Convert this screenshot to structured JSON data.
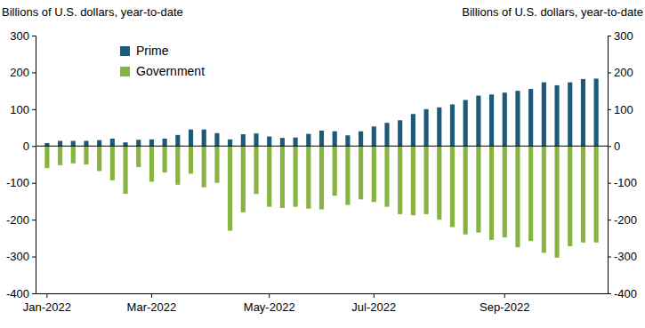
{
  "chart_data": {
    "type": "bar",
    "y_label": "Billions of U.S. dollars, year-to-date",
    "y2_label": "Billions of U.S. dollars, year-to-date",
    "categories": [
      "Jan-2022",
      null,
      null,
      null,
      null,
      null,
      null,
      null,
      "Mar-2022",
      null,
      null,
      null,
      null,
      null,
      null,
      null,
      null,
      "May-2022",
      null,
      null,
      null,
      null,
      null,
      null,
      null,
      "Jul-2022",
      null,
      null,
      null,
      null,
      null,
      null,
      null,
      null,
      null,
      "Sep-2022",
      null,
      null,
      null,
      null,
      null,
      null,
      null
    ],
    "series": [
      {
        "name": "Prime",
        "color": "#1d5a79",
        "values": [
          8,
          14,
          14,
          14,
          16,
          20,
          10,
          17,
          18,
          20,
          30,
          45,
          45,
          35,
          18,
          32,
          34,
          26,
          22,
          23,
          33,
          42,
          40,
          29,
          40,
          53,
          63,
          70,
          87,
          100,
          105,
          113,
          125,
          137,
          140,
          145,
          150,
          155,
          173,
          165,
          173,
          182,
          183
        ]
      },
      {
        "name": "Government",
        "color": "#86b341",
        "values": [
          -60,
          -52,
          -47,
          -50,
          -68,
          -93,
          -130,
          -57,
          -97,
          -72,
          -105,
          -75,
          -112,
          -100,
          -230,
          -180,
          -130,
          -165,
          -168,
          -165,
          -170,
          -172,
          -135,
          -160,
          -145,
          -152,
          -165,
          -185,
          -188,
          -185,
          -200,
          -220,
          -240,
          -235,
          -255,
          -248,
          -275,
          -258,
          -290,
          -303,
          -272,
          -262,
          -262
        ]
      }
    ],
    "ylim": [
      -400,
      300
    ],
    "yticks": [
      -400,
      -300,
      -200,
      -100,
      0,
      100,
      200,
      300
    ],
    "y2lim": [
      -400,
      300
    ],
    "y2ticks": [
      -400,
      -300,
      -200,
      -100,
      0,
      100,
      200,
      300
    ],
    "legend": "upper left",
    "grid": false
  }
}
